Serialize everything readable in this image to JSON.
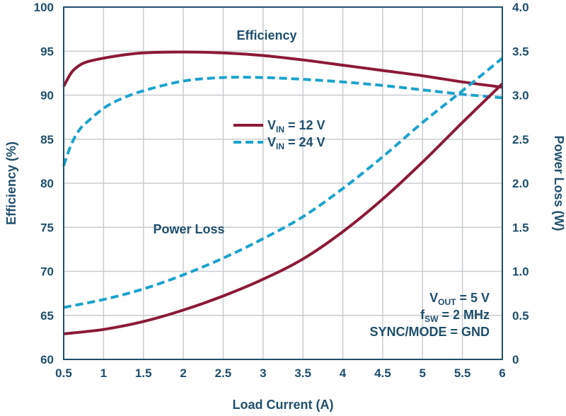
{
  "chart_data": {
    "type": "line",
    "xlabel": "Load Current (A)",
    "ylabel_left": "Efficiency (%)",
    "ylabel_right": "Power Loss (W)",
    "xlim": [
      0.5,
      6
    ],
    "ylim_left": [
      60,
      100
    ],
    "ylim_right": [
      0,
      4
    ],
    "x_ticks": [
      "0.5",
      "1",
      "1.5",
      "2",
      "2.5",
      "3",
      "3.5",
      "4",
      "4.5",
      "5",
      "5.5",
      "6"
    ],
    "y_left_ticks": [
      "60",
      "65",
      "70",
      "75",
      "80",
      "85",
      "90",
      "95",
      "100"
    ],
    "y_right_ticks": [
      "0",
      "0.5",
      "1.0",
      "1.5",
      "2.0",
      "2.5",
      "3.0",
      "3.5",
      "4.0"
    ],
    "grid": true,
    "series": [
      {
        "legend": "12 V",
        "axis": "left",
        "style": "solid",
        "color": "#8b1a36",
        "x": [
          0.5,
          0.6,
          0.7,
          0.8,
          1.0,
          1.2,
          1.5,
          2.0,
          2.5,
          3.0,
          3.5,
          4.0,
          4.5,
          5.0,
          5.5,
          6.0
        ],
        "y": [
          91.0,
          92.6,
          93.4,
          93.8,
          94.2,
          94.5,
          94.8,
          94.9,
          94.8,
          94.5,
          94.0,
          93.4,
          92.8,
          92.2,
          91.5,
          90.9
        ]
      },
      {
        "legend": "24 V",
        "axis": "left",
        "style": "dashed",
        "color": "#1aa3cc",
        "x": [
          0.5,
          0.6,
          0.7,
          0.8,
          1.0,
          1.2,
          1.5,
          2.0,
          2.5,
          3.0,
          3.5,
          4.0,
          4.5,
          5.0,
          5.5,
          6.0
        ],
        "y": [
          82.0,
          84.5,
          86.1,
          87.0,
          88.5,
          89.5,
          90.5,
          91.6,
          92.0,
          92.0,
          91.8,
          91.5,
          91.1,
          90.6,
          90.1,
          89.7
        ]
      },
      {
        "legend": "12 V",
        "axis": "right",
        "style": "solid",
        "color": "#8b1a36",
        "x": [
          0.5,
          1.0,
          1.5,
          2.0,
          2.5,
          3.0,
          3.5,
          4.0,
          4.5,
          5.0,
          5.5,
          6.0
        ],
        "y": [
          0.29,
          0.34,
          0.43,
          0.56,
          0.72,
          0.91,
          1.14,
          1.45,
          1.82,
          2.24,
          2.69,
          3.13
        ]
      },
      {
        "legend": "24 V",
        "axis": "right",
        "style": "dashed",
        "color": "#1aa3cc",
        "x": [
          0.5,
          1.0,
          1.5,
          2.0,
          2.5,
          3.0,
          3.5,
          4.0,
          4.5,
          5.0,
          5.5,
          6.0
        ],
        "y": [
          0.59,
          0.68,
          0.8,
          0.96,
          1.15,
          1.37,
          1.62,
          1.94,
          2.3,
          2.69,
          3.05,
          3.42
        ]
      }
    ],
    "legend_prefix": "V",
    "legend_subscript": "IN",
    "legend_placement": "center",
    "annotations": {
      "efficiency": "Efficiency",
      "power_loss": "Power Loss",
      "conditions": [
        {
          "main": "V",
          "sub": "OUT",
          "rest": " = 5 V"
        },
        {
          "main": "f",
          "sub": "SW",
          "rest": " = 2 MHz"
        },
        {
          "main": "SYNC/MODE = GND",
          "sub": "",
          "rest": ""
        }
      ]
    }
  }
}
